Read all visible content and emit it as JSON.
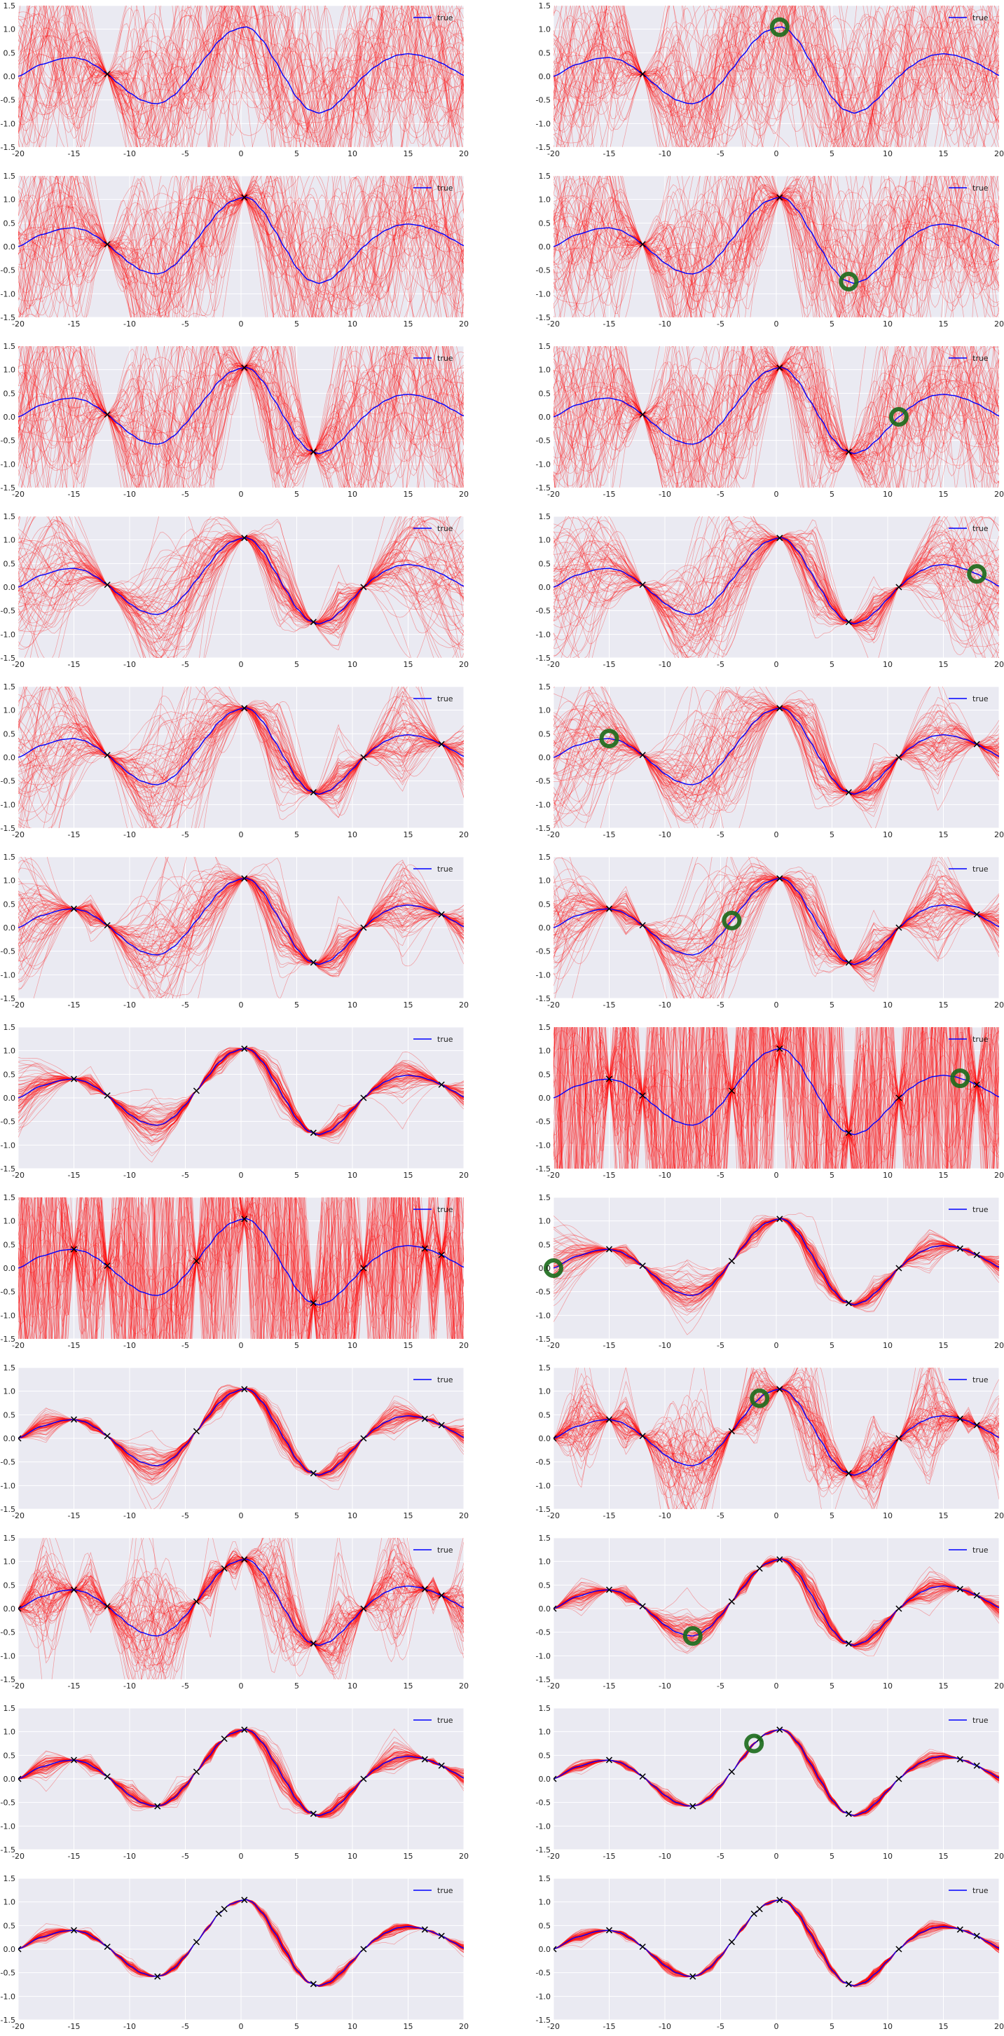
{
  "figure": {
    "rows": 12,
    "cols": 2,
    "background": "#eaeaf2",
    "grid_color": "#ffffff",
    "sample_color": "#ff0000",
    "true_color": "#0000ff",
    "marker_color": "#000000",
    "highlight_color": "#1a6a1a"
  },
  "chart_data": {
    "type": "line",
    "description_free": true,
    "xlim": [
      -20,
      20
    ],
    "ylim": [
      -1.5,
      1.5
    ],
    "xticks": [
      -20,
      -15,
      -10,
      -5,
      0,
      5,
      10,
      15,
      20
    ],
    "xtick_labels": [
      "-20",
      "-15",
      "-10",
      "-5",
      "0",
      "5",
      "10",
      "15",
      "20"
    ],
    "yticks": [
      -1.5,
      -1.0,
      -0.5,
      0.0,
      0.5,
      1.0,
      1.5
    ],
    "ytick_labels": [
      "-1.5",
      "-1.0",
      "-0.5",
      "0.0",
      "0.5",
      "1.0",
      "1.5"
    ],
    "legend": {
      "label": "true",
      "placement": "top-right"
    },
    "true_function": {
      "x": [
        -20,
        -18,
        -16,
        -15,
        -14,
        -13,
        -12,
        -11,
        -10,
        -9,
        -8,
        -7.5,
        -7,
        -6,
        -5,
        -4,
        -3,
        -2,
        -1,
        0,
        0.5,
        1,
        2,
        3,
        4,
        5,
        6,
        7,
        8,
        9,
        10,
        11,
        12,
        13,
        14,
        15,
        16,
        17,
        18,
        19,
        20
      ],
      "y": [
        0.0,
        0.25,
        0.38,
        0.4,
        0.35,
        0.22,
        0.05,
        -0.15,
        -0.35,
        -0.5,
        -0.57,
        -0.58,
        -0.55,
        -0.4,
        -0.15,
        0.15,
        0.45,
        0.75,
        0.95,
        1.03,
        1.05,
        1.0,
        0.75,
        0.35,
        -0.05,
        -0.45,
        -0.7,
        -0.78,
        -0.7,
        -0.5,
        -0.25,
        0.0,
        0.2,
        0.35,
        0.45,
        0.48,
        0.45,
        0.38,
        0.28,
        0.15,
        0.02
      ]
    },
    "panels": [
      {
        "observed_x": [
          -12
        ],
        "candidate_x": null,
        "spread": "wide"
      },
      {
        "observed_x": [
          -12
        ],
        "candidate_x": 0.3,
        "spread": "wide"
      },
      {
        "observed_x": [
          -12,
          0.3
        ],
        "candidate_x": null,
        "spread": "wide"
      },
      {
        "observed_x": [
          -12,
          0.3
        ],
        "candidate_x": 6.5,
        "spread": "wide"
      },
      {
        "observed_x": [
          -12,
          0.3,
          6.5
        ],
        "candidate_x": null,
        "spread": "wide"
      },
      {
        "observed_x": [
          -12,
          0.3,
          6.5
        ],
        "candidate_x": 11,
        "spread": "wide"
      },
      {
        "observed_x": [
          -12,
          0.3,
          6.5,
          11
        ],
        "candidate_x": null,
        "spread": "medium"
      },
      {
        "observed_x": [
          -12,
          0.3,
          6.5,
          11
        ],
        "candidate_x": 18,
        "spread": "medium"
      },
      {
        "observed_x": [
          -12,
          0.3,
          6.5,
          11,
          18
        ],
        "candidate_x": null,
        "spread": "medium"
      },
      {
        "observed_x": [
          -12,
          0.3,
          6.5,
          11,
          18
        ],
        "candidate_x": -15,
        "spread": "medium"
      },
      {
        "observed_x": [
          -15,
          -12,
          0.3,
          6.5,
          11,
          18
        ],
        "candidate_x": null,
        "spread": "medium"
      },
      {
        "observed_x": [
          -15,
          -12,
          0.3,
          6.5,
          11,
          18
        ],
        "candidate_x": -4,
        "spread": "medium"
      },
      {
        "observed_x": [
          -15,
          -12,
          -4,
          0.3,
          6.5,
          11,
          18
        ],
        "candidate_x": null,
        "spread": "narrow"
      },
      {
        "observed_x": [
          -15,
          -12,
          -4,
          0.3,
          6.5,
          11,
          18
        ],
        "candidate_x": 16.5,
        "spread": "saturated"
      },
      {
        "observed_x": [
          -15,
          -12,
          -4,
          0.3,
          6.5,
          11,
          16.5,
          18
        ],
        "candidate_x": null,
        "spread": "saturated"
      },
      {
        "observed_x": [
          -15,
          -12,
          -4,
          0.3,
          6.5,
          11,
          16.5,
          18
        ],
        "candidate_x": -20,
        "spread": "narrow"
      },
      {
        "observed_x": [
          -20,
          -15,
          -12,
          -4,
          0.3,
          6.5,
          11,
          16.5,
          18
        ],
        "candidate_x": null,
        "spread": "narrow"
      },
      {
        "observed_x": [
          -20,
          -15,
          -12,
          -4,
          0.3,
          6.5,
          11,
          16.5,
          18
        ],
        "candidate_x": -1.5,
        "spread": "noisy"
      },
      {
        "observed_x": [
          -20,
          -15,
          -12,
          -4,
          -1.5,
          0.3,
          6.5,
          11,
          16.5,
          18
        ],
        "candidate_x": null,
        "spread": "noisy"
      },
      {
        "observed_x": [
          -20,
          -15,
          -12,
          -4,
          -1.5,
          0.3,
          6.5,
          11,
          16.5,
          18
        ],
        "candidate_x": -7.5,
        "spread": "narrow"
      },
      {
        "observed_x": [
          -20,
          -15,
          -12,
          -7.5,
          -4,
          -1.5,
          0.3,
          6.5,
          11,
          16.5,
          18
        ],
        "candidate_x": null,
        "spread": "narrow"
      },
      {
        "observed_x": [
          -20,
          -15,
          -12,
          -7.5,
          -4,
          -1.5,
          0.3,
          6.5,
          11,
          16.5,
          18
        ],
        "candidate_x": -2,
        "spread": "tight"
      },
      {
        "observed_x": [
          -20,
          -15,
          -12,
          -7.5,
          -4,
          -2,
          -1.5,
          0.3,
          6.5,
          11,
          16.5,
          18
        ],
        "candidate_x": null,
        "spread": "tight"
      },
      {
        "observed_x": [
          -20,
          -15,
          -12,
          -7.5,
          -4,
          -2,
          -1.5,
          0.3,
          6.5,
          11,
          16.5,
          18
        ],
        "candidate_x": null,
        "spread": "tight"
      }
    ]
  }
}
